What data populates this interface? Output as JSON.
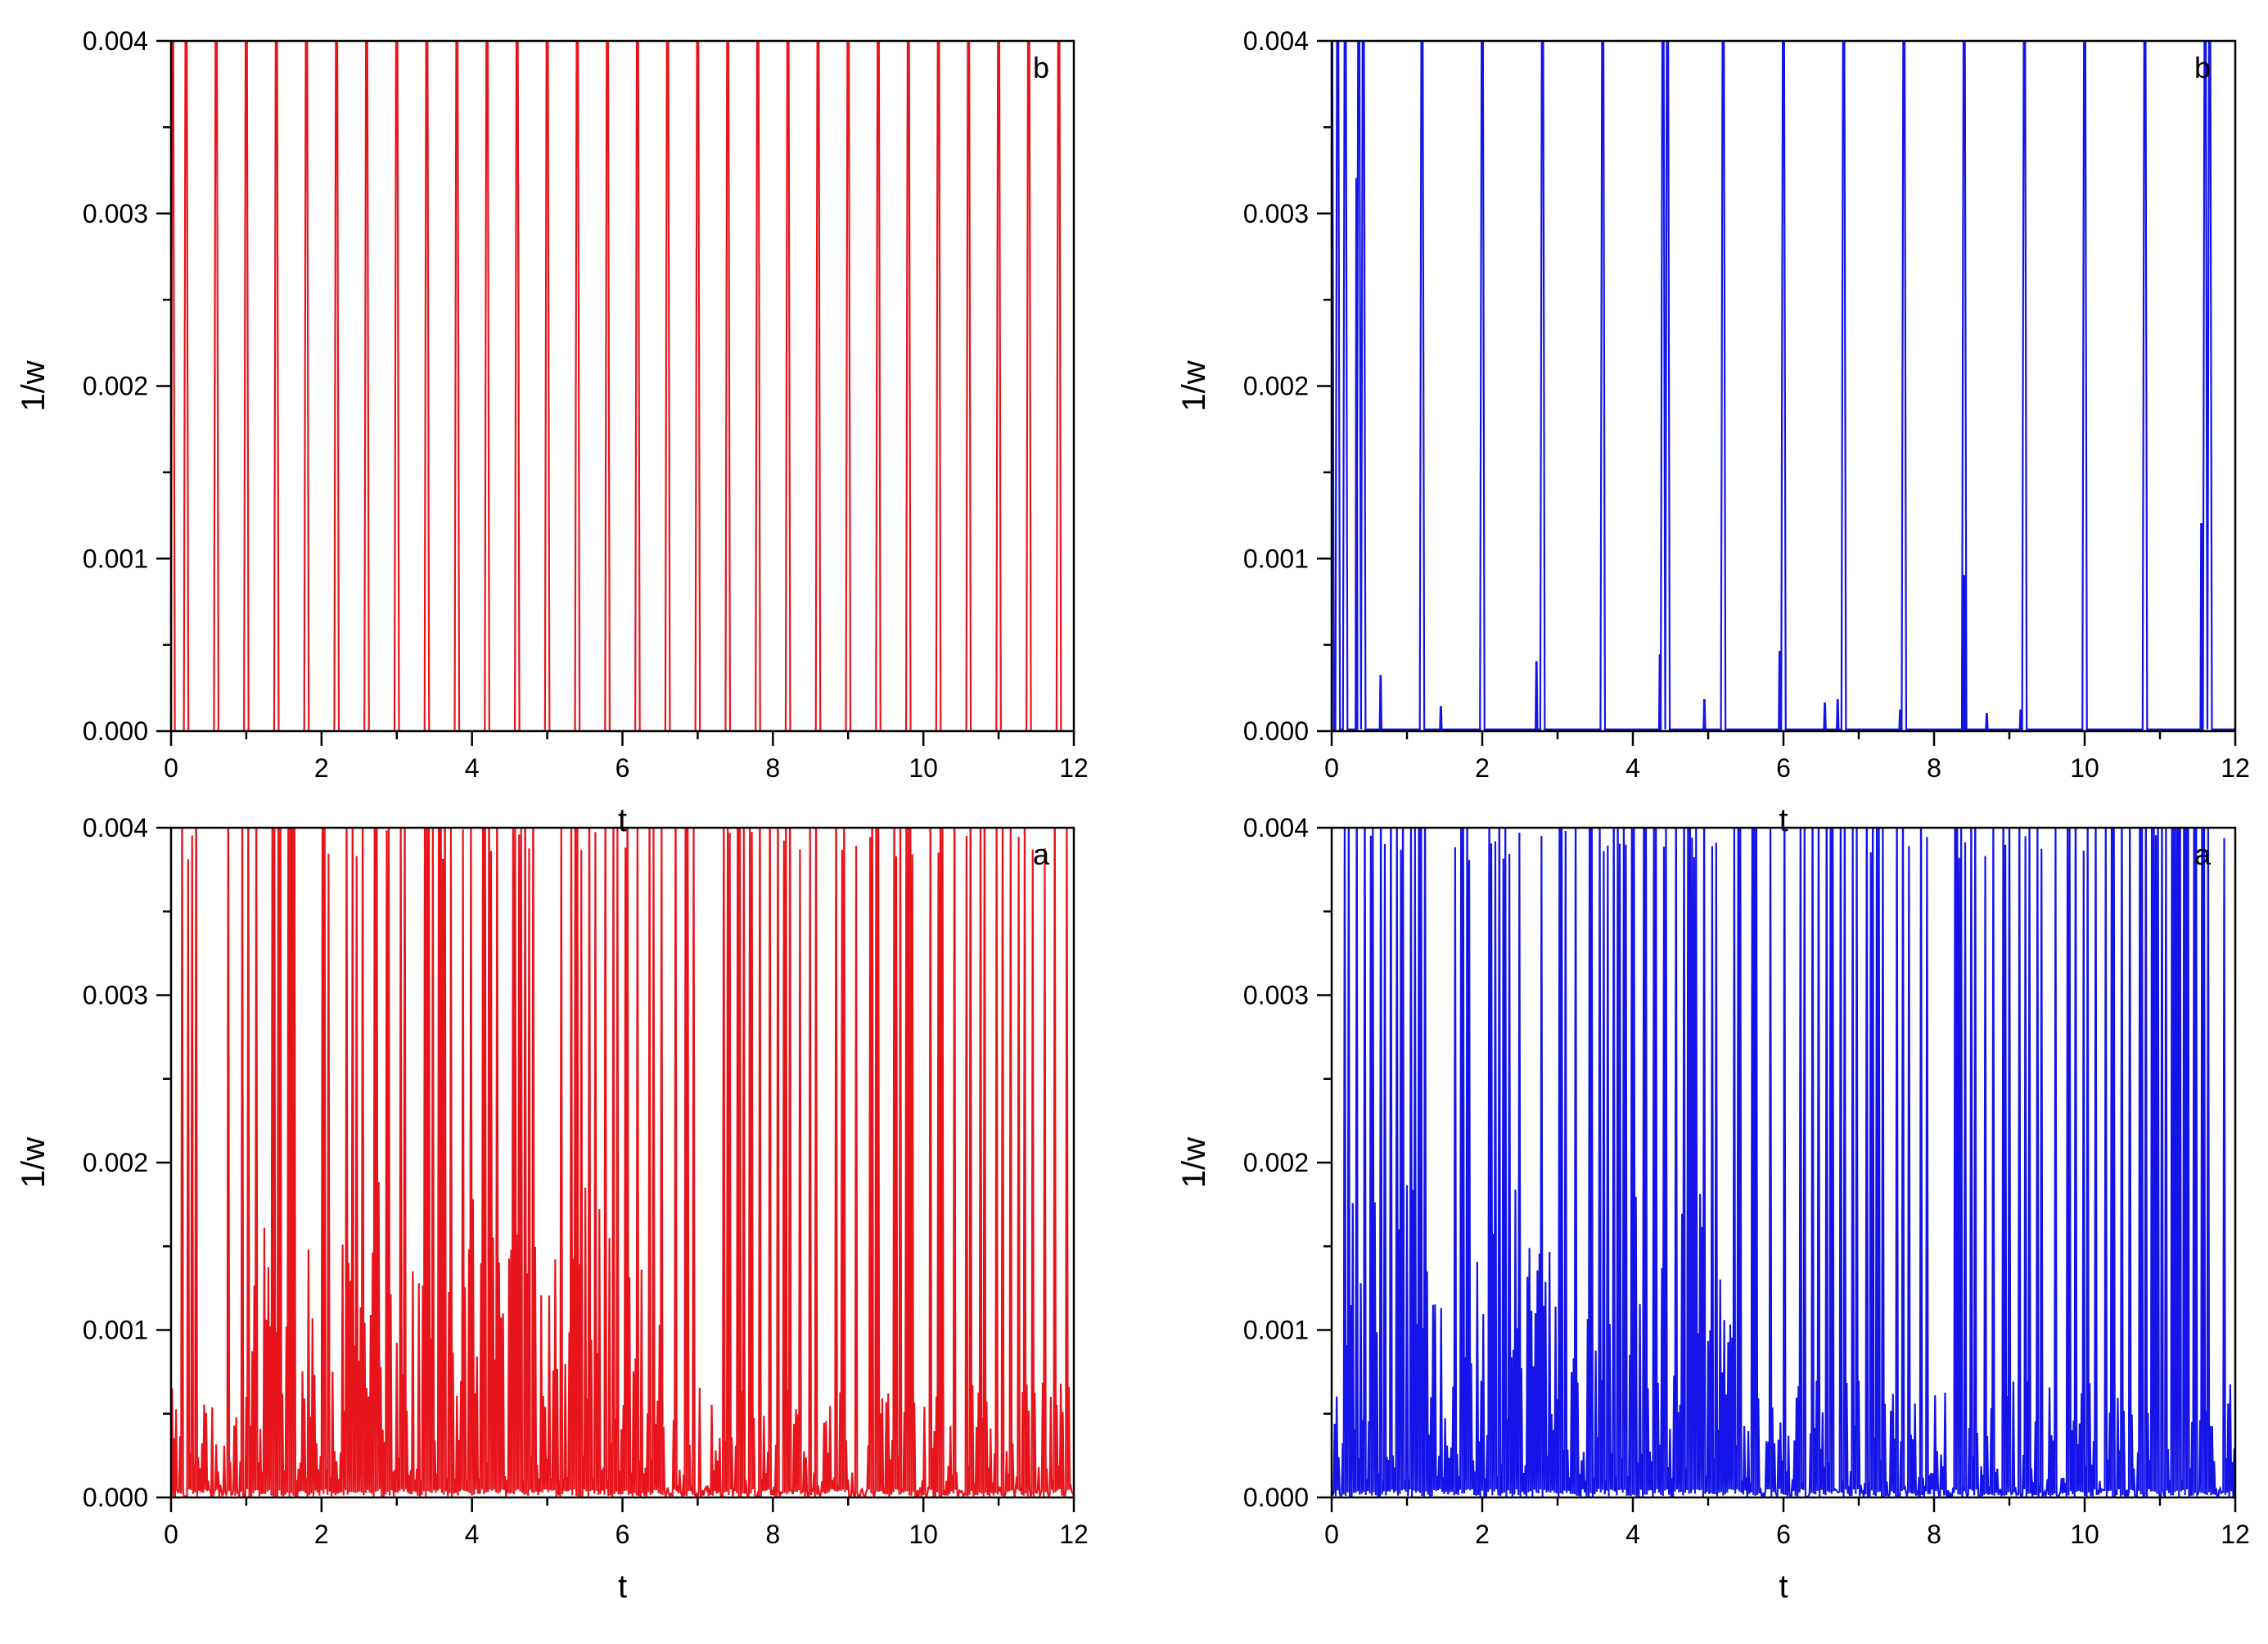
{
  "chart_data": [
    {
      "type": "line",
      "panel_label": "b",
      "xlabel": "t",
      "ylabel": "1/w",
      "xlim": [
        0,
        12
      ],
      "ylim": [
        0,
        0.004
      ],
      "x_ticks": [
        "0",
        "2",
        "4",
        "6",
        "8",
        "10",
        "12"
      ],
      "y_ticks": [
        "0.000",
        "0.001",
        "0.002",
        "0.003",
        "0.004"
      ],
      "grid": false,
      "legend": "none",
      "series": [
        {
          "color": "#e8141c",
          "pattern": "regular_spikes",
          "spike_times": [
            0.02,
            0.2,
            0.6,
            1.0,
            1.4,
            1.8,
            2.2,
            2.6,
            3.0,
            3.4,
            3.8,
            4.2,
            4.6,
            5.0,
            5.4,
            5.8,
            6.2,
            6.6,
            7.0,
            7.4,
            7.8,
            8.2,
            8.6,
            9.0,
            9.4,
            9.8,
            10.2,
            10.6,
            11.0,
            11.4,
            11.8
          ],
          "spike_width": 0.03,
          "baseline": 0.0,
          "peak": 0.004
        }
      ]
    },
    {
      "type": "line",
      "panel_label": "b",
      "xlabel": "t",
      "ylabel": "1/w",
      "xlim": [
        0,
        12
      ],
      "ylim": [
        0,
        0.004
      ],
      "x_ticks": [
        "0",
        "2",
        "4",
        "6",
        "8",
        "10",
        "12"
      ],
      "y_ticks": [
        "0.000",
        "0.001",
        "0.002",
        "0.003",
        "0.004"
      ],
      "grid": false,
      "legend": "none",
      "series": [
        {
          "color": "#1414e8",
          "pattern": "sparse_spikes",
          "spike_times": [
            0.0,
            0.08,
            0.18,
            0.36,
            0.42,
            1.2,
            2.0,
            2.8,
            3.6,
            4.4,
            4.46,
            5.2,
            6.0,
            6.8,
            7.6,
            8.4,
            9.2,
            10.0,
            10.8,
            11.6,
            11.66
          ],
          "small_peaks": [
            [
              0.33,
              0.0032
            ],
            [
              0.65,
              0.00032
            ],
            [
              1.45,
              0.00014
            ],
            [
              2.72,
              0.0004
            ],
            [
              4.36,
              0.00044
            ],
            [
              4.95,
              0.00018
            ],
            [
              5.95,
              0.00046
            ],
            [
              6.55,
              0.00016
            ],
            [
              6.72,
              0.00018
            ],
            [
              7.55,
              0.00012
            ],
            [
              8.4,
              0.0009
            ],
            [
              8.7,
              0.0001
            ],
            [
              9.15,
              0.00012
            ],
            [
              11.55,
              0.0012
            ]
          ],
          "spike_width": 0.03,
          "baseline": 1e-05,
          "peak": 0.004
        }
      ]
    },
    {
      "type": "line",
      "panel_label": "a",
      "xlabel": "t",
      "ylabel": "1/w",
      "xlim": [
        0,
        12
      ],
      "ylim": [
        0,
        0.004
      ],
      "x_ticks": [
        "0",
        "2",
        "4",
        "6",
        "8",
        "10",
        "12"
      ],
      "y_ticks": [
        "0.000",
        "0.001",
        "0.002",
        "0.003",
        "0.004"
      ],
      "grid": false,
      "legend": "none",
      "series": [
        {
          "color": "#e8141c",
          "pattern": "chaotic_spikes",
          "approx_samples": 900,
          "tall_spike_fraction": 0.3,
          "dense_region": [
            1.0,
            6.5
          ],
          "baseline": 0.0,
          "peak": 0.004
        }
      ]
    },
    {
      "type": "line",
      "panel_label": "a",
      "xlabel": "t",
      "ylabel": "1/w",
      "xlim": [
        0,
        12
      ],
      "ylim": [
        0,
        0.004
      ],
      "x_ticks": [
        "0",
        "2",
        "4",
        "6",
        "8",
        "10",
        "12"
      ],
      "y_ticks": [
        "0.000",
        "0.001",
        "0.002",
        "0.003",
        "0.004"
      ],
      "grid": false,
      "legend": "none",
      "series": [
        {
          "color": "#1414e8",
          "pattern": "chaotic_spikes",
          "approx_samples": 900,
          "tall_spike_fraction": 0.32,
          "dense_region": [
            0.2,
            5.4
          ],
          "baseline": 0.0,
          "peak": 0.004
        }
      ]
    }
  ]
}
